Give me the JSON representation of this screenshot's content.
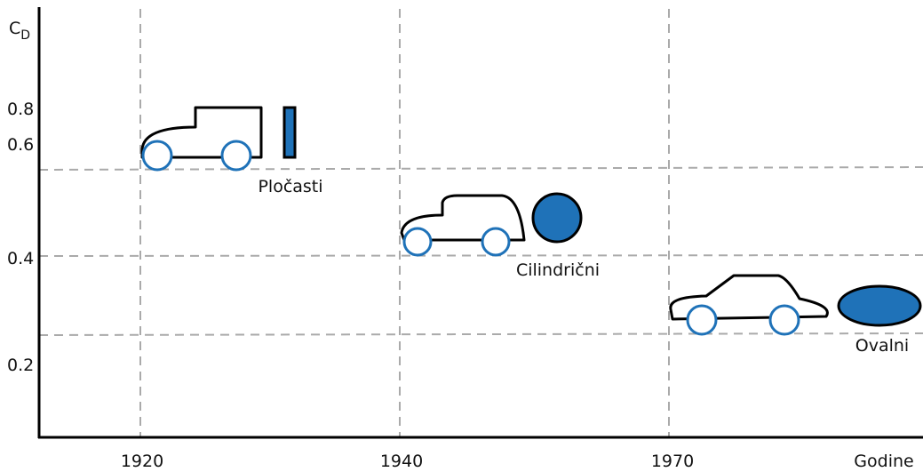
{
  "y_axis": {
    "label": {
      "symbol": "C",
      "subscript": "D"
    },
    "tick_labels": [
      "0.8",
      "0.6",
      "0.4",
      "0.2"
    ]
  },
  "x_axis": {
    "tick_labels": [
      "1920",
      "1940",
      "1970"
    ],
    "label": "Godine"
  },
  "shapes": [
    {
      "label": "Pločasti"
    },
    {
      "label": "Cilindrični"
    },
    {
      "label": "Ovalni"
    }
  ]
}
